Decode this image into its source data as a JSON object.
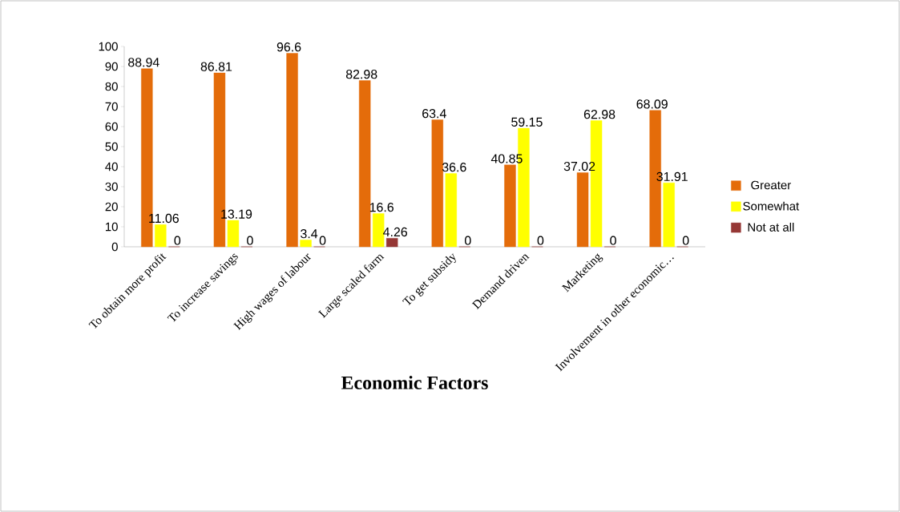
{
  "chart_data": {
    "type": "bar",
    "xlabel": "Economic Factors",
    "categories": [
      "To obtain more profit",
      "To increase savings",
      "High wages of labour",
      "Large scaled farm",
      "To get subsidy",
      "Demand driven",
      "Marketing",
      "Involvement in other economic…"
    ],
    "series": [
      {
        "name": "Greater",
        "color": "#e46c0a",
        "values": [
          88.94,
          86.81,
          96.6,
          82.98,
          63.4,
          40.85,
          37.02,
          68.09
        ]
      },
      {
        "name": "Somewhat",
        "color": "#ffff00",
        "values": [
          11.06,
          13.19,
          3.4,
          16.6,
          36.6,
          59.15,
          62.98,
          31.91
        ]
      },
      {
        "name": "Not at all",
        "color": "#953735",
        "values": [
          0,
          0,
          0,
          4.26,
          0,
          0,
          0,
          0
        ]
      }
    ],
    "ylim": [
      0,
      100
    ],
    "yticks": [
      0,
      10,
      20,
      30,
      40,
      50,
      60,
      70,
      80,
      90,
      100
    ],
    "data_labels": true,
    "legend": "right"
  }
}
